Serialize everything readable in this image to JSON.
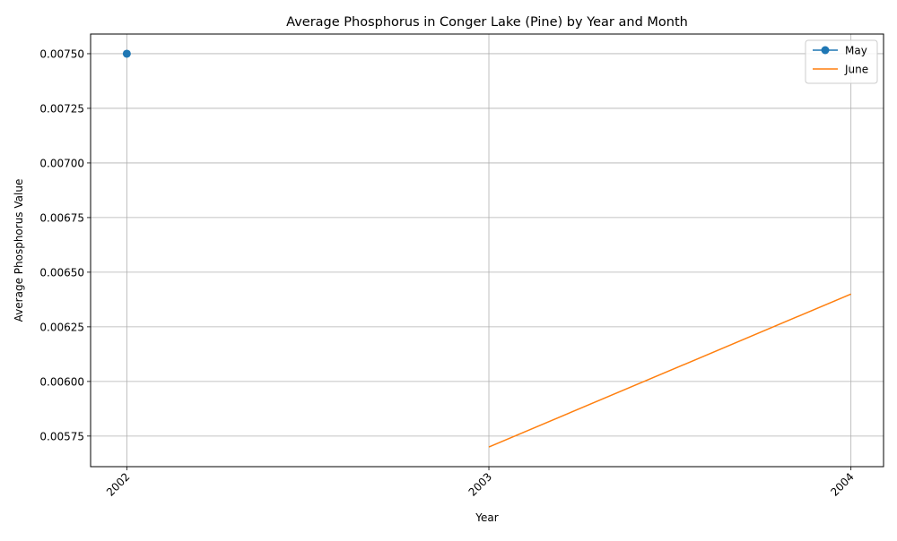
{
  "chart_data": {
    "type": "line",
    "title": "Average Phosphorus in Conger Lake (Pine) by Year and Month",
    "xlabel": "Year",
    "ylabel": "Average Phosphorus Value",
    "x_ticks": [
      "2002",
      "2003",
      "2004"
    ],
    "y_ticks": [
      "0.00575",
      "0.00600",
      "0.00625",
      "0.00650",
      "0.00675",
      "0.00700",
      "0.00725",
      "0.00750"
    ],
    "xlim": [
      2001.9,
      2004.09
    ],
    "ylim": [
      0.00561,
      0.00759
    ],
    "grid": true,
    "legend_position": "top-right",
    "series": [
      {
        "name": "May",
        "color": "#1f77b4",
        "marker": "circle",
        "points": [
          [
            2002,
            0.0075
          ]
        ]
      },
      {
        "name": "June",
        "color": "#ff7f0e",
        "marker": "none",
        "points": [
          [
            2003,
            0.0057
          ],
          [
            2004,
            0.0064
          ]
        ]
      }
    ]
  }
}
